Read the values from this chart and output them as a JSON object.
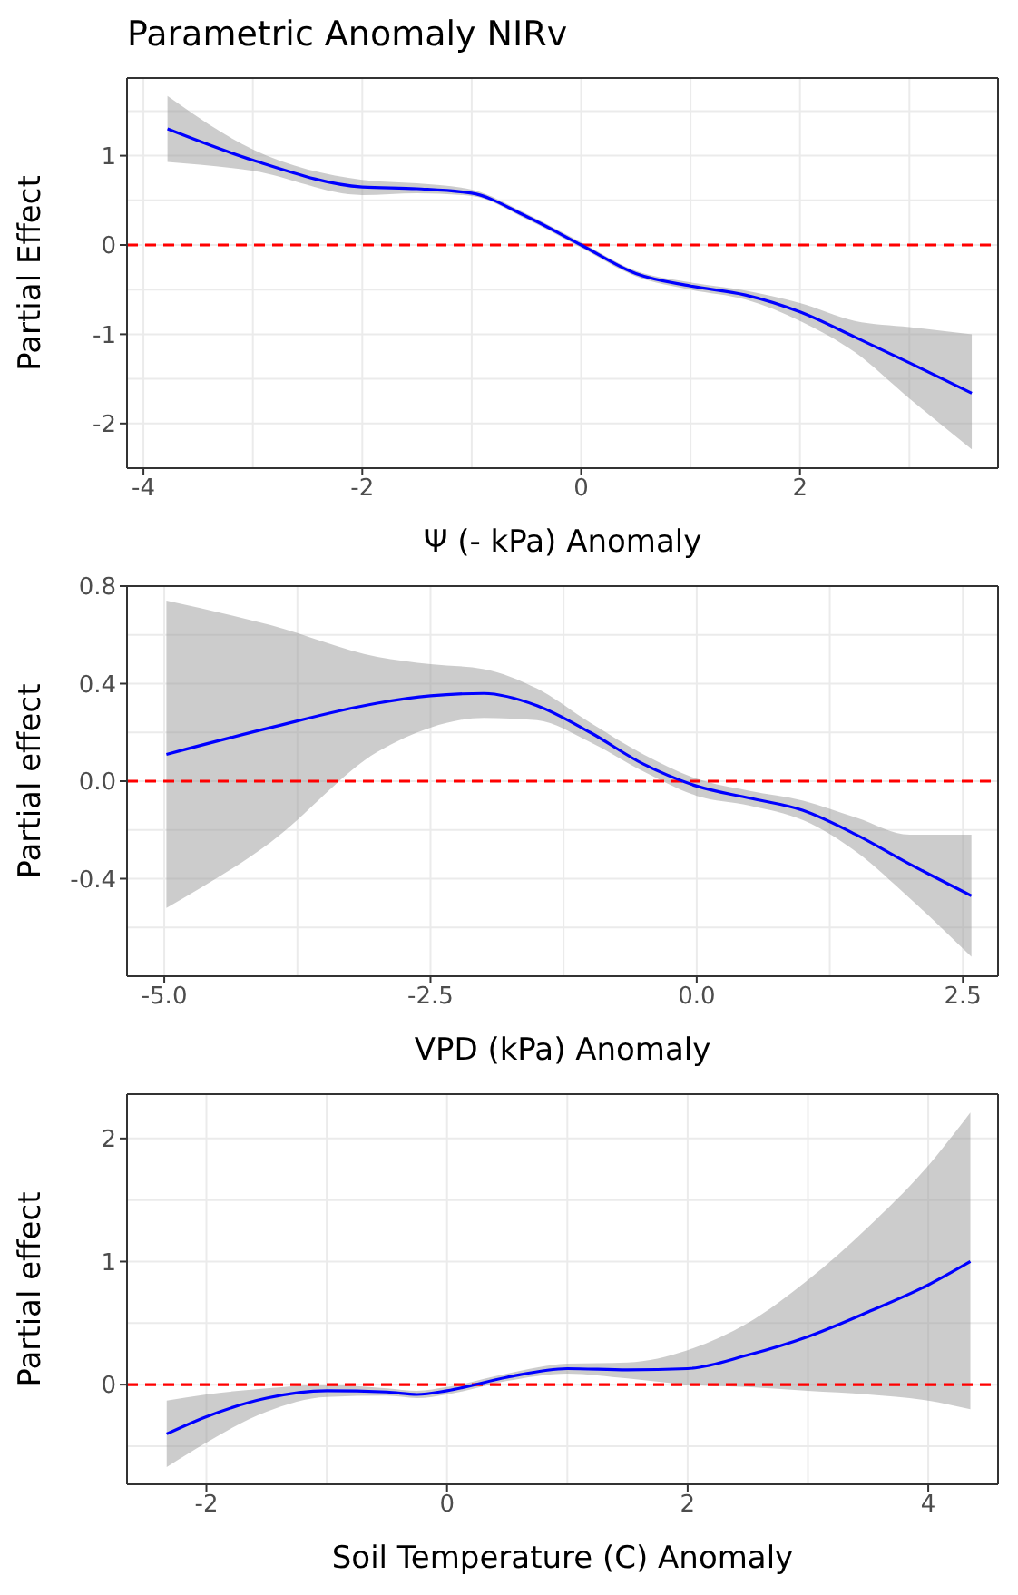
{
  "chart_data": [
    {
      "type": "line",
      "title": "Parametric Anomaly NIRv",
      "xlabel": "Ψ (- kPa) Anomaly",
      "ylabel": "Partial Effect",
      "xlim": [
        -4.15,
        3.81
      ],
      "ylim": [
        -2.5,
        1.87
      ],
      "xticks": [
        -4,
        -2,
        0,
        2
      ],
      "yticks": [
        -2,
        -1,
        0,
        1
      ],
      "grid": true,
      "line_style": "solid",
      "marker": "none",
      "series": [
        {
          "color": "#0000ff",
          "x": [
            -3.78,
            -3,
            -2,
            -1.5,
            -1,
            -0.5,
            0,
            0.5,
            1,
            1.5,
            2,
            2.5,
            3,
            3.57
          ],
          "values": [
            1.3,
            0.95,
            0.65,
            0.63,
            0.58,
            0.32,
            0,
            -0.32,
            -0.46,
            -0.56,
            -0.75,
            -1.03,
            -1.32,
            -1.66
          ],
          "lower": [
            0.93,
            0.83,
            0.56,
            0.58,
            0.55,
            0.29,
            -0.03,
            -0.35,
            -0.5,
            -0.61,
            -0.85,
            -1.2,
            -1.72,
            -2.29
          ],
          "upper": [
            1.67,
            1.07,
            0.73,
            0.69,
            0.62,
            0.35,
            0.03,
            -0.29,
            -0.42,
            -0.51,
            -0.65,
            -0.85,
            -0.92,
            -1.0
          ]
        }
      ],
      "ref_lines": [
        {
          "axis": "y",
          "value": 0,
          "color": "#ff0000",
          "line_style": "dashed"
        }
      ]
    },
    {
      "type": "line",
      "xlabel": "VPD (kPa) Anomaly",
      "ylabel": "Partial effect",
      "xlim": [
        -5.35,
        2.83
      ],
      "ylim": [
        -0.8,
        0.8
      ],
      "xticks": [
        {
          "value": -5,
          "label": "-5.0"
        },
        -2.5,
        {
          "value": 0,
          "label": "0.0"
        },
        2.5
      ],
      "yticks": [
        -0.4,
        {
          "value": 0,
          "label": "0.0"
        },
        0.4,
        0.8
      ],
      "grid": true,
      "line_style": "solid",
      "marker": "none",
      "series": [
        {
          "color": "#0000ff",
          "x": [
            -4.98,
            -4,
            -3,
            -2.5,
            -2,
            -1.5,
            -1,
            -0.5,
            0,
            0.5,
            1,
            1.5,
            2,
            2.58
          ],
          "values": [
            0.11,
            0.22,
            0.32,
            0.35,
            0.36,
            0.31,
            0.2,
            0.07,
            -0.02,
            -0.07,
            -0.12,
            -0.22,
            -0.34,
            -0.47
          ],
          "lower": [
            -0.52,
            -0.25,
            0.12,
            0.22,
            0.26,
            0.25,
            0.16,
            0.04,
            -0.06,
            -0.1,
            -0.16,
            -0.29,
            -0.48,
            -0.72
          ],
          "upper": [
            0.74,
            0.64,
            0.51,
            0.48,
            0.46,
            0.38,
            0.24,
            0.11,
            0.01,
            -0.04,
            -0.08,
            -0.15,
            -0.22,
            -0.22
          ]
        }
      ],
      "ref_lines": [
        {
          "axis": "y",
          "value": 0,
          "color": "#ff0000",
          "line_style": "dashed"
        }
      ]
    },
    {
      "type": "line",
      "xlabel": "Soil Temperature (C) Anomaly",
      "ylabel": "Partial effect",
      "xlim": [
        -2.66,
        4.58
      ],
      "ylim": [
        -0.81,
        2.36
      ],
      "xticks": [
        -2,
        0,
        2,
        4
      ],
      "yticks": [
        0,
        1,
        2
      ],
      "grid": true,
      "line_style": "solid",
      "marker": "none",
      "series": [
        {
          "color": "#0000ff",
          "x": [
            -2.33,
            -2,
            -1.5,
            -1,
            -0.5,
            -0.25,
            0,
            0.5,
            1,
            1.5,
            2,
            2.5,
            3,
            3.5,
            4,
            4.35
          ],
          "values": [
            -0.4,
            -0.26,
            -0.11,
            -0.05,
            -0.06,
            -0.08,
            -0.05,
            0.06,
            0.13,
            0.12,
            0.13,
            0.24,
            0.39,
            0.59,
            0.81,
            1.0
          ],
          "lower": [
            -0.67,
            -0.47,
            -0.22,
            -0.1,
            -0.09,
            -0.11,
            -0.08,
            0.03,
            0.09,
            0.05,
            0,
            -0.02,
            -0.05,
            -0.08,
            -0.13,
            -0.2
          ],
          "upper": [
            -0.13,
            -0.08,
            -0.03,
            0,
            -0.03,
            -0.05,
            -0.02,
            0.09,
            0.17,
            0.18,
            0.28,
            0.5,
            0.85,
            1.28,
            1.78,
            2.21
          ]
        }
      ],
      "ref_lines": [
        {
          "axis": "y",
          "value": 0,
          "color": "#ff0000",
          "line_style": "dashed"
        }
      ]
    }
  ]
}
